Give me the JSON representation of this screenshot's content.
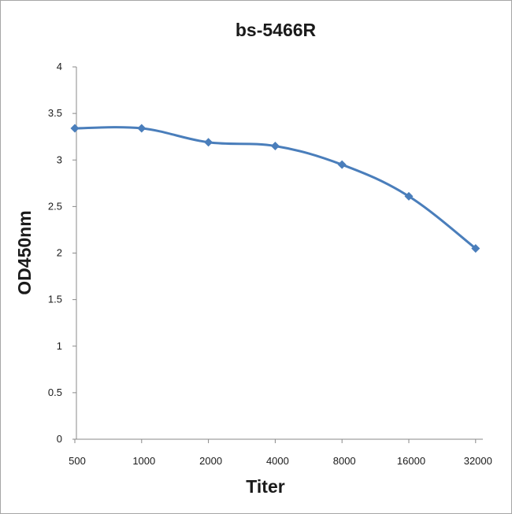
{
  "chart_data": {
    "type": "line",
    "title": "bs-5466R",
    "xlabel": "Titer",
    "ylabel": "OD450nm",
    "categories": [
      "500",
      "1000",
      "2000",
      "4000",
      "8000",
      "16000",
      "32000"
    ],
    "series": [
      {
        "values": [
          3.34,
          3.34,
          3.19,
          3.15,
          2.95,
          2.61,
          2.05
        ]
      }
    ],
    "yticks": [
      "0",
      "0.5",
      "1",
      "1.5",
      "2",
      "2.5",
      "3",
      "3.5",
      "4"
    ],
    "ylim": [
      0,
      4
    ],
    "grid": false,
    "legend": "none",
    "colors": {
      "line": "#4a7ebb",
      "marker": "#4a7ebb",
      "axis": "#888888"
    }
  }
}
